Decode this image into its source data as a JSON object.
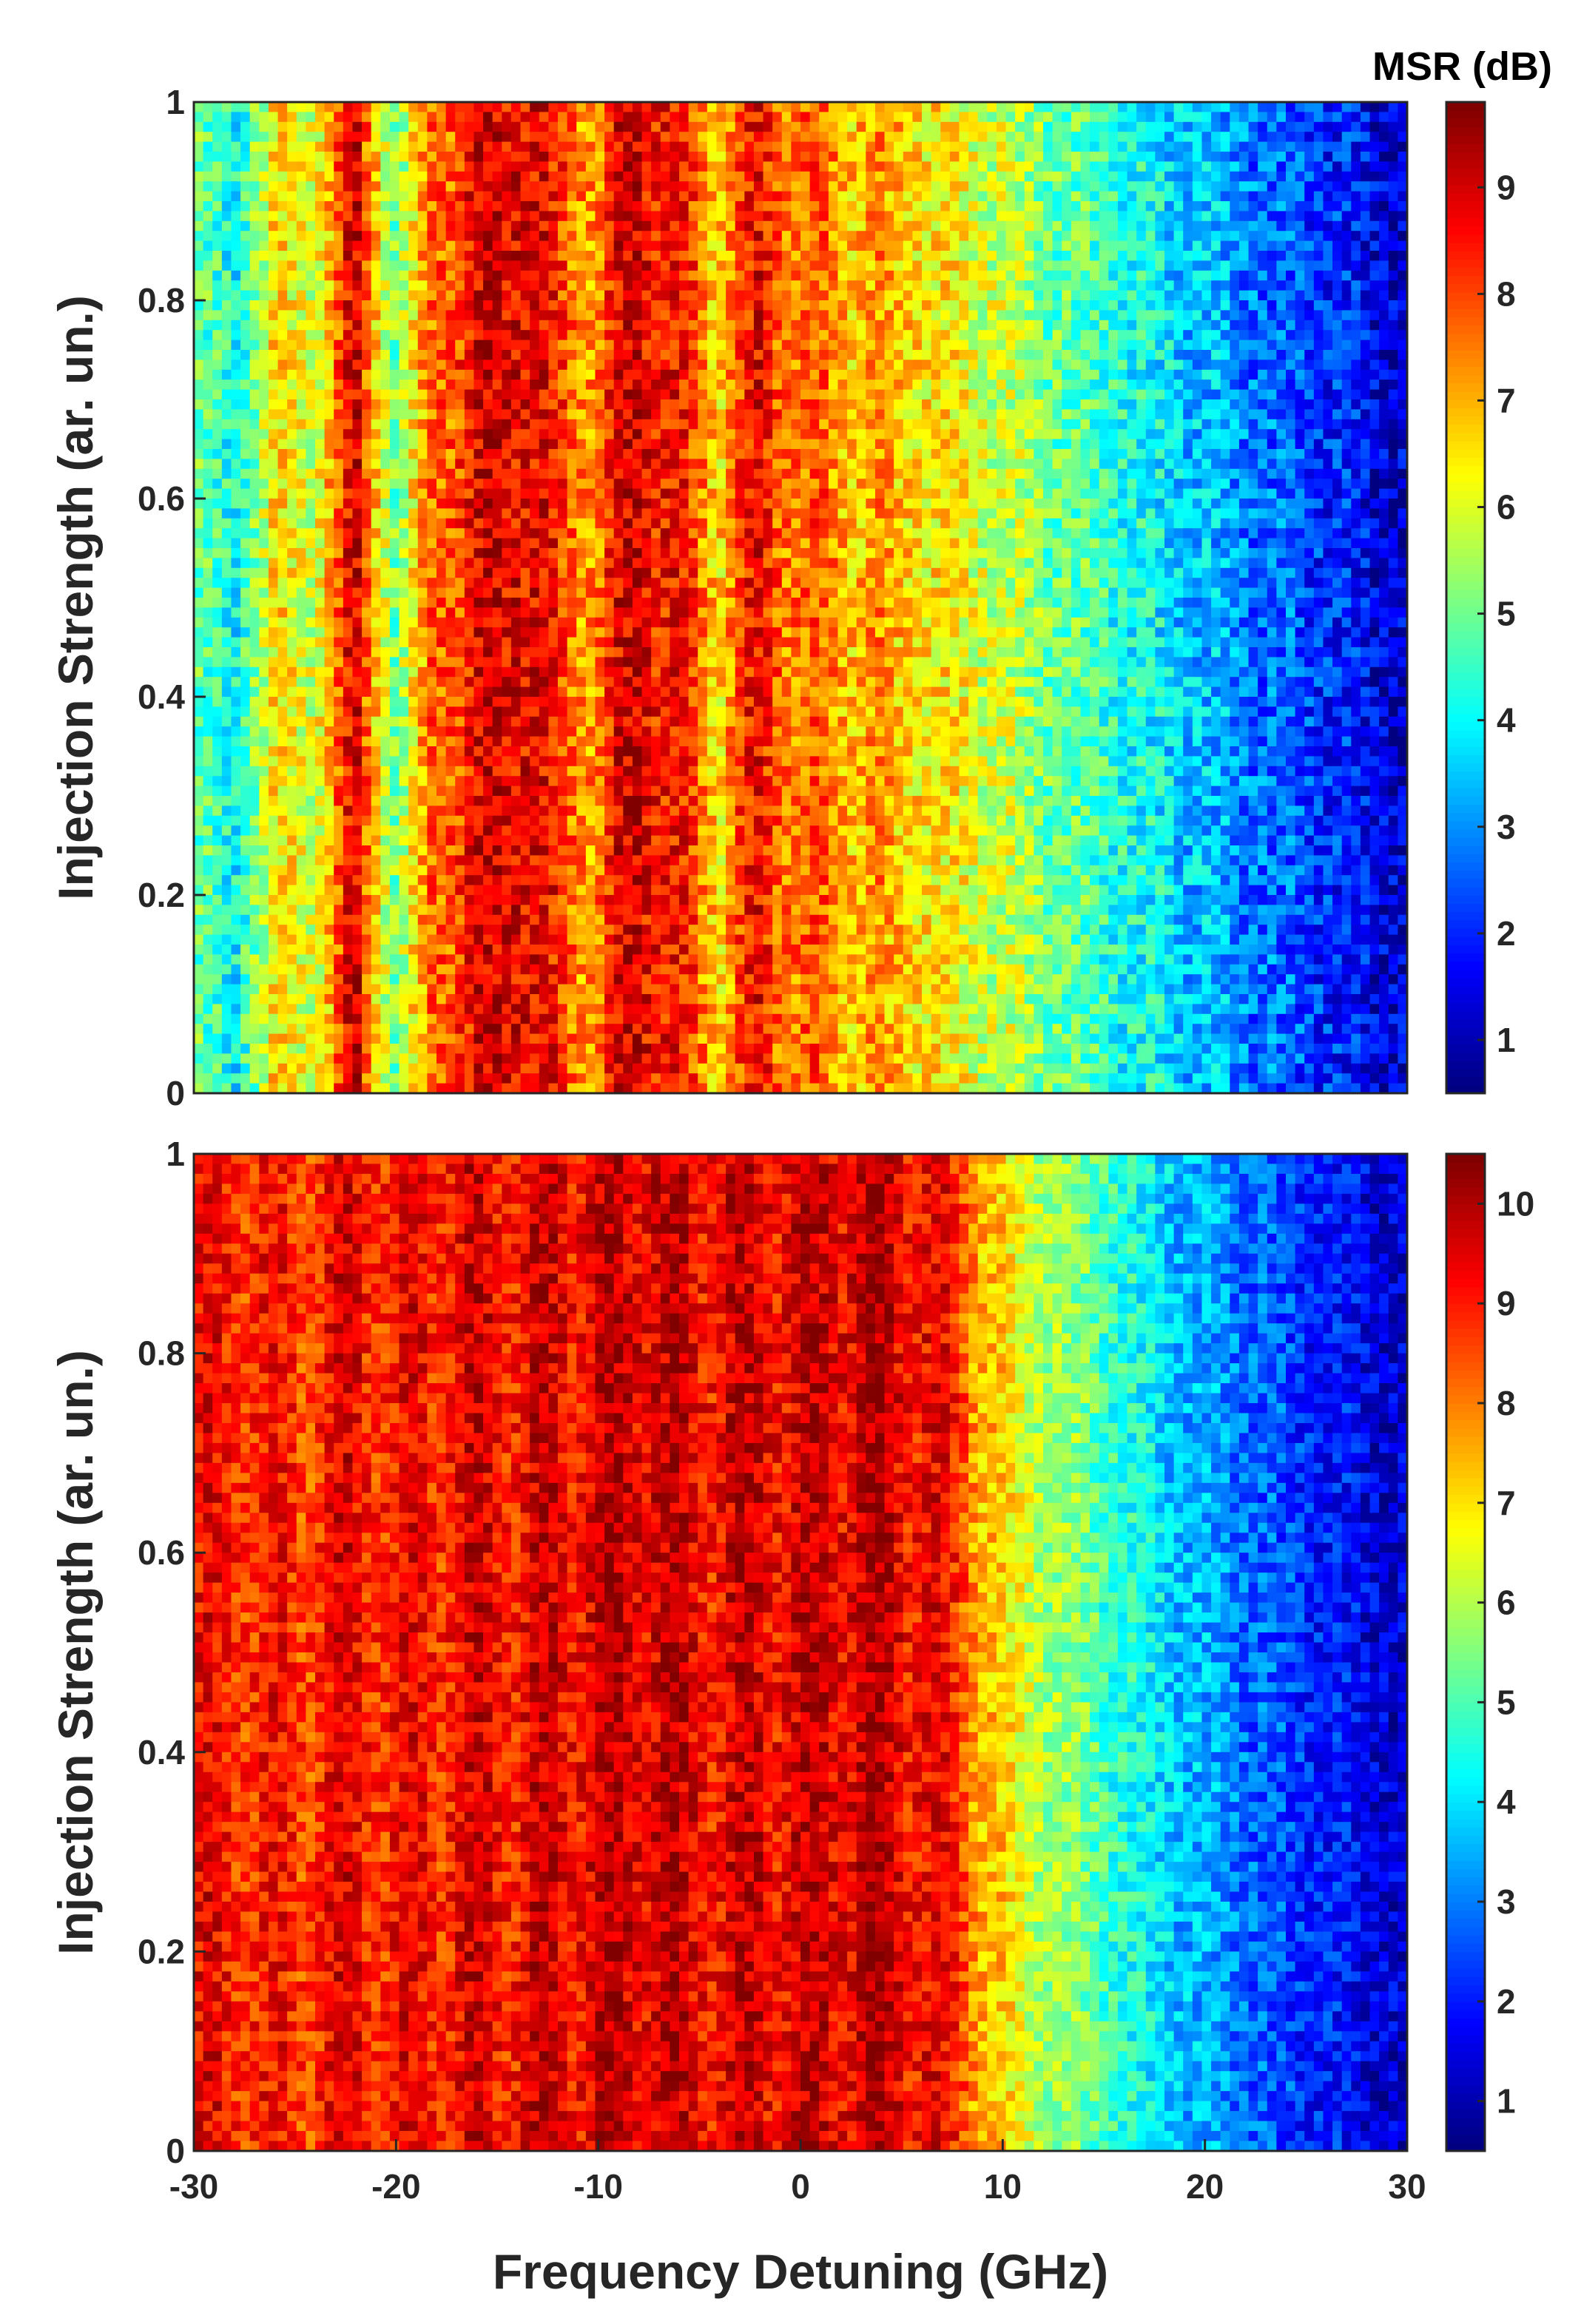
{
  "colorbar_title": "MSR (dB)",
  "chart_data": [
    {
      "type": "heatmap",
      "panel": "top",
      "colormap": "jet",
      "xlabel": "",
      "ylabel": "Injection Strength (ar. un.)",
      "xlim": [
        -30,
        30
      ],
      "ylim": [
        0,
        1
      ],
      "xticks": [],
      "yticks": [
        "0",
        "0.2",
        "0.4",
        "0.6",
        "0.8",
        "1"
      ],
      "clim": [
        0.5,
        9.8
      ],
      "colorbar_ticks": [
        "1",
        "2",
        "3",
        "4",
        "5",
        "6",
        "7",
        "8",
        "9"
      ],
      "colorbar_tick_values": [
        1,
        2,
        3,
        4,
        5,
        6,
        7,
        8,
        9
      ],
      "grid": false,
      "detuning_GHz": [
        -30,
        -28,
        -26,
        -24,
        -22,
        -20,
        -18,
        -16,
        -14,
        -12,
        -10,
        -8,
        -6,
        -4,
        -2,
        0,
        2,
        4,
        6,
        8,
        10,
        12,
        14,
        16,
        18,
        20,
        22,
        24,
        26,
        28,
        30
      ],
      "msr_dB_profile": [
        5.0,
        4.0,
        6.5,
        6.0,
        8.8,
        5.0,
        8.0,
        8.5,
        9.2,
        8.0,
        7.5,
        9.3,
        8.2,
        7.0,
        8.5,
        7.6,
        7.3,
        7.0,
        6.6,
        6.2,
        5.8,
        5.2,
        4.7,
        4.3,
        3.8,
        3.4,
        2.9,
        2.5,
        2.1,
        1.6,
        1.2
      ],
      "noise_dB": 1.0
    },
    {
      "type": "heatmap",
      "panel": "bottom",
      "colormap": "jet",
      "xlabel": "Frequency Detuning (GHz)",
      "ylabel": "Injection Strength (ar. un.)",
      "xlim": [
        -30,
        30
      ],
      "ylim": [
        0,
        1
      ],
      "xticks": [
        "-30",
        "-20",
        "-10",
        "0",
        "10",
        "20",
        "30"
      ],
      "yticks": [
        "0",
        "0.2",
        "0.4",
        "0.6",
        "0.8",
        "1"
      ],
      "clim": [
        0.5,
        10.5
      ],
      "colorbar_ticks": [
        "1",
        "2",
        "3",
        "4",
        "5",
        "6",
        "7",
        "8",
        "9",
        "10"
      ],
      "colorbar_tick_values": [
        1,
        2,
        3,
        4,
        5,
        6,
        7,
        8,
        9,
        10
      ],
      "grid": false,
      "detuning_GHz": [
        -30,
        -28,
        -26,
        -24,
        -22,
        -20,
        -18,
        -16,
        -14,
        -12,
        -10,
        -8,
        -6,
        -4,
        -2,
        0,
        2,
        4,
        6,
        8,
        10,
        12,
        14,
        16,
        18,
        20,
        22,
        24,
        26,
        28,
        30
      ],
      "msr_dB_profile": [
        9.0,
        9.2,
        8.8,
        9.0,
        9.3,
        9.0,
        9.2,
        9.4,
        9.3,
        9.5,
        9.6,
        9.8,
        9.5,
        9.4,
        9.6,
        9.5,
        9.7,
        9.8,
        9.4,
        8.6,
        7.0,
        6.0,
        5.4,
        4.6,
        3.9,
        3.4,
        2.9,
        2.4,
        2.0,
        1.6,
        1.2
      ],
      "noise_dB": 0.9
    }
  ]
}
